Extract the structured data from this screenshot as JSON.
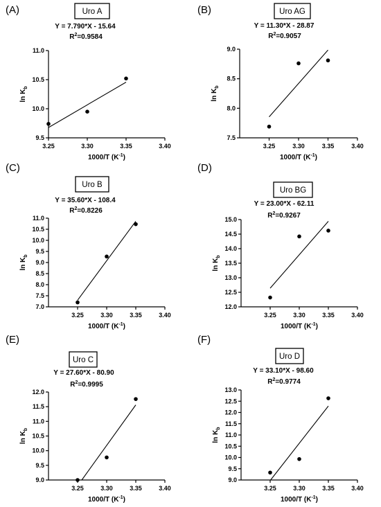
{
  "chart_data": [
    {
      "type": "scatter",
      "panel": "(A)",
      "title": "Uro A",
      "equation": "Y = 7.790*X - 15.64",
      "r2_label": "R",
      "r2_value": "=0.9584",
      "xlabel": "1000/T (K",
      "xlabel_sup": "-1",
      "xlabel_end": ")",
      "ylabel": "ln K",
      "ylabel_sub": "b",
      "xlim": [
        3.25,
        3.4
      ],
      "ylim": [
        9.5,
        11.0
      ],
      "xticks": [
        "3.25",
        "3.30",
        "3.35",
        "3.40"
      ],
      "yticks": [
        "9.5",
        "10.0",
        "10.5",
        "11.0"
      ],
      "points": {
        "x": [
          3.25,
          3.3,
          3.35
        ],
        "y": [
          9.74,
          9.95,
          10.52
        ]
      },
      "fit": {
        "slope": 7.79,
        "intercept": -15.64
      }
    },
    {
      "type": "scatter",
      "panel": "(B)",
      "title": "Uro AG",
      "equation": "Y = 11.30*X - 28.87",
      "r2_label": "R",
      "r2_value": "=0.9057",
      "xlabel": "1000/T (K",
      "xlabel_sup": "-1",
      "xlabel_end": ")",
      "ylabel": "ln K",
      "ylabel_sub": "b",
      "xlim": [
        3.2,
        3.4
      ],
      "ylim": [
        7.5,
        9.0
      ],
      "xticks": [
        "3.25",
        "3.30",
        "3.35",
        "3.40"
      ],
      "yticks": [
        "7.5",
        "8.0",
        "8.5",
        "9.0"
      ],
      "points": {
        "x": [
          3.25,
          3.3,
          3.35
        ],
        "y": [
          7.69,
          8.76,
          8.81
        ]
      },
      "fit": {
        "slope": 11.3,
        "intercept": -28.87
      }
    },
    {
      "type": "scatter",
      "panel": "(C)",
      "title": "Uro B",
      "equation": "Y = 35.60*X - 108.4",
      "r2_label": "R",
      "r2_value": "=0.8226",
      "xlabel": "1000/T (K",
      "xlabel_sup": "-1",
      "xlabel_end": ")",
      "ylabel": "ln K",
      "ylabel_sub": "b",
      "xlim": [
        3.2,
        3.4
      ],
      "ylim": [
        7.0,
        11.0
      ],
      "xticks": [
        "3.25",
        "3.30",
        "3.35",
        "3.40"
      ],
      "yticks": [
        "7.0",
        "7.5",
        "8.0",
        "8.5",
        "9.0",
        "9.5",
        "10.0",
        "10.5",
        "11.0"
      ],
      "points": {
        "x": [
          3.25,
          3.3,
          3.35
        ],
        "y": [
          7.2,
          9.27,
          10.73
        ]
      },
      "fit": {
        "slope": 35.6,
        "intercept": -108.4
      }
    },
    {
      "type": "scatter",
      "panel": "(D)",
      "title": "Uro BG",
      "equation": "Y = 23.00*X - 62.11",
      "r2_label": "R",
      "r2_value": "=0.9267",
      "xlabel": "1000/T (K",
      "xlabel_sup": "-1",
      "xlabel_end": ")",
      "ylabel": "ln K",
      "ylabel_sub": "b",
      "xlim": [
        3.2,
        3.4
      ],
      "ylim": [
        12.0,
        15.0
      ],
      "xticks": [
        "3.25",
        "3.30",
        "3.35",
        "3.40"
      ],
      "yticks": [
        "12.0",
        "12.5",
        "13.0",
        "13.5",
        "14.0",
        "14.5",
        "15.0"
      ],
      "points": {
        "x": [
          3.25,
          3.3,
          3.35
        ],
        "y": [
          12.32,
          14.42,
          14.62
        ]
      },
      "fit": {
        "slope": 23.0,
        "intercept": -62.11
      }
    },
    {
      "type": "scatter",
      "panel": "(E)",
      "title": "Uro C",
      "equation": "Y = 27.60*X - 80.90",
      "r2_label": "R",
      "r2_value": "=0.9995",
      "xlabel": "1000/T (K",
      "xlabel_sup": "-1",
      "xlabel_end": ")",
      "ylabel": "ln K",
      "ylabel_sub": "b",
      "xlim": [
        3.2,
        3.4
      ],
      "ylim": [
        9.0,
        12.0
      ],
      "xticks": [
        "3.25",
        "3.30",
        "3.35",
        "3.40"
      ],
      "yticks": [
        "9.0",
        "9.5",
        "10.0",
        "10.5",
        "11.0",
        "11.5",
        "12.0"
      ],
      "points": {
        "x": [
          3.25,
          3.3,
          3.35
        ],
        "y": [
          9.0,
          9.77,
          11.76
        ]
      },
      "fit": {
        "slope": 27.6,
        "intercept": -80.9
      }
    },
    {
      "type": "scatter",
      "panel": "(F)",
      "title": "Uro D",
      "equation": "Y = 33.10*X - 98.60",
      "r2_label": "R",
      "r2_value": "=0.9774",
      "xlabel": "1000/T (K",
      "xlabel_sup": "-1",
      "xlabel_end": ")",
      "ylabel": "ln K",
      "ylabel_sub": "b",
      "xlim": [
        3.2,
        3.4
      ],
      "ylim": [
        9.0,
        13.0
      ],
      "xticks": [
        "3.25",
        "3.30",
        "3.35",
        "3.40"
      ],
      "yticks": [
        "9.0",
        "9.5",
        "10.0",
        "10.5",
        "11.0",
        "11.5",
        "12.0",
        "12.5",
        "13.0"
      ],
      "points": {
        "x": [
          3.25,
          3.3,
          3.35
        ],
        "y": [
          9.33,
          9.93,
          12.63
        ]
      },
      "fit": {
        "slope": 33.1,
        "intercept": -98.6
      }
    }
  ]
}
